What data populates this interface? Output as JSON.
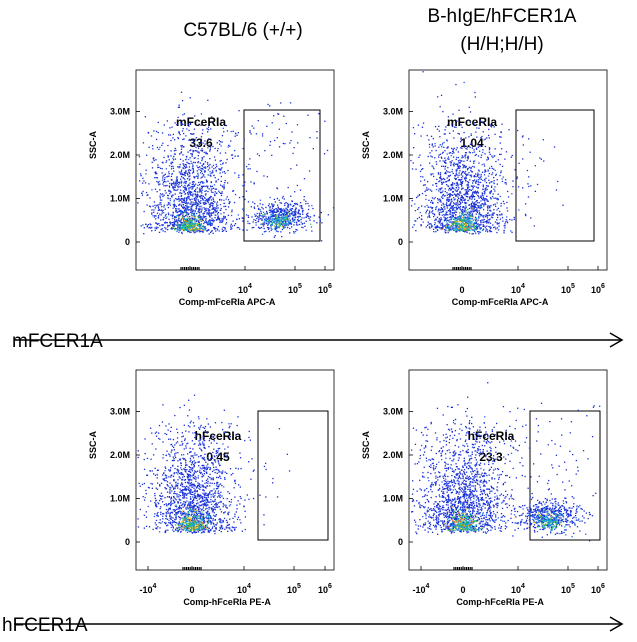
{
  "column_titles": [
    "C57BL/6 (+/+)",
    "B-hIgE/hFCER1A",
    "(H/H;H/H)"
  ],
  "row_labels": [
    "mFCER1A",
    "hFCER1A"
  ],
  "chart_data": [
    {
      "type": "scatter",
      "row": "mFCER1A",
      "column": "C57BL/6 (+/+)",
      "xlabel": "Comp-mFceRIa APC-A",
      "ylabel": "SSC-A",
      "x_scale": "biexponential",
      "x_ticks": [
        "0",
        "10^4",
        "10^5",
        "10^6"
      ],
      "y_ticks": [
        "0",
        "1.0M",
        "2.0M",
        "3.0M"
      ],
      "gate": {
        "name": "mFceRIa",
        "percent": "33.6",
        "x_range": [
          "10^4",
          "5x10^5"
        ],
        "y_range": [
          0,
          3000000
        ]
      },
      "populations": [
        {
          "name": "negative",
          "x_center": 0,
          "y_center": 300000,
          "density": "high"
        },
        {
          "name": "positive",
          "x_center": "10^5",
          "y_center": 550000,
          "density": "medium"
        }
      ]
    },
    {
      "type": "scatter",
      "row": "mFCER1A",
      "column": "B-hIgE/hFCER1A (H/H;H/H)",
      "xlabel": "Comp-mFceRIa APC-A",
      "ylabel": "SSC-A",
      "x_scale": "biexponential",
      "x_ticks": [
        "0",
        "10^4",
        "10^5",
        "10^6"
      ],
      "y_ticks": [
        "0",
        "1.0M",
        "2.0M",
        "3.0M"
      ],
      "gate": {
        "name": "mFceRIa",
        "percent": "1.04",
        "x_range": [
          "10^4",
          "5x10^5"
        ],
        "y_range": [
          0,
          3000000
        ]
      },
      "populations": [
        {
          "name": "negative",
          "x_center": 0,
          "y_center": 400000,
          "density": "high"
        }
      ]
    },
    {
      "type": "scatter",
      "row": "hFCER1A",
      "column": "C57BL/6 (+/+)",
      "xlabel": "Comp-hFceRIa PE-A",
      "ylabel": "SSC-A",
      "x_scale": "biexponential",
      "x_ticks": [
        "-10^4",
        "0",
        "10^4",
        "10^5",
        "10^6"
      ],
      "y_ticks": [
        "0",
        "1.0M",
        "2.0M",
        "3.0M"
      ],
      "gate": {
        "name": "hFceRIa",
        "percent": "0.45",
        "x_range": [
          "2x10^4",
          "10^6"
        ],
        "y_range": [
          0,
          3000000
        ]
      },
      "populations": [
        {
          "name": "negative",
          "x_center": 0,
          "y_center": 350000,
          "density": "high"
        }
      ]
    },
    {
      "type": "scatter",
      "row": "hFCER1A",
      "column": "B-hIgE/hFCER1A (H/H;H/H)",
      "xlabel": "Comp-hFceRIa PE-A",
      "ylabel": "SSC-A",
      "x_scale": "biexponential",
      "x_ticks": [
        "-10^4",
        "0",
        "10^4",
        "10^5",
        "10^6"
      ],
      "y_ticks": [
        "0",
        "1.0M",
        "2.0M",
        "3.0M"
      ],
      "gate": {
        "name": "hFceRIa",
        "percent": "23.3",
        "x_range": [
          "2x10^4",
          "10^6"
        ],
        "y_range": [
          0,
          3000000
        ]
      },
      "populations": [
        {
          "name": "negative",
          "x_center": 0,
          "y_center": 300000,
          "density": "high"
        },
        {
          "name": "positive",
          "x_center": "7x10^4",
          "y_center": 550000,
          "density": "medium"
        }
      ]
    }
  ]
}
